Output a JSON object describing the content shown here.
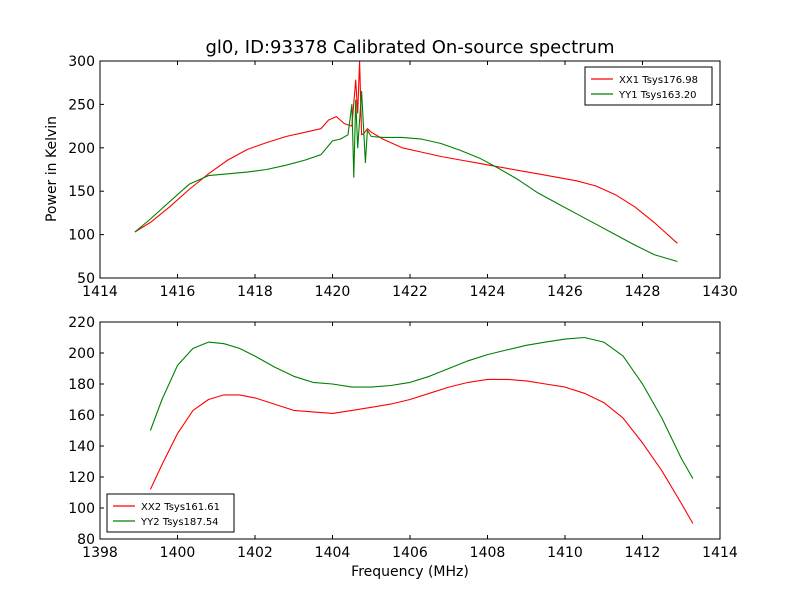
{
  "chart_data": [
    {
      "type": "line",
      "title": "gl0, ID:93378 Calibrated On-source spectrum",
      "xlabel": "",
      "ylabel": "Power in Kelvin",
      "xlim": [
        1414,
        1430
      ],
      "ylim": [
        50,
        300
      ],
      "xticks": [
        1414,
        1416,
        1418,
        1420,
        1422,
        1424,
        1426,
        1428,
        1430
      ],
      "yticks": [
        50,
        100,
        150,
        200,
        250,
        300
      ],
      "grid": false,
      "legend_position": "upper right",
      "series": [
        {
          "name": "XX1 Tsys176.98",
          "color": "#ff0000",
          "x": [
            1414.9,
            1415.3,
            1415.8,
            1416.3,
            1416.8,
            1417.3,
            1417.8,
            1418.3,
            1418.8,
            1419.3,
            1419.7,
            1419.9,
            1420.1,
            1420.3,
            1420.5,
            1420.6,
            1420.65,
            1420.7,
            1420.75,
            1420.8,
            1420.9,
            1421.0,
            1421.3,
            1421.8,
            1422.3,
            1422.8,
            1423.3,
            1423.8,
            1424.3,
            1424.8,
            1425.3,
            1425.8,
            1426.3,
            1426.8,
            1427.3,
            1427.8,
            1428.3,
            1428.9
          ],
          "y": [
            103,
            114,
            132,
            152,
            170,
            186,
            198,
            206,
            213,
            218,
            222,
            232,
            236,
            228,
            225,
            278,
            240,
            300,
            215,
            216,
            222,
            218,
            210,
            200,
            195,
            190,
            186,
            182,
            178,
            174,
            170,
            166,
            162,
            156,
            146,
            132,
            114,
            90
          ]
        },
        {
          "name": "YY1 Tsys163.20",
          "color": "#008000",
          "x": [
            1414.9,
            1415.3,
            1415.8,
            1416.3,
            1416.8,
            1417.3,
            1417.8,
            1418.3,
            1418.8,
            1419.3,
            1419.7,
            1420.0,
            1420.2,
            1420.4,
            1420.5,
            1420.55,
            1420.6,
            1420.65,
            1420.75,
            1420.85,
            1420.9,
            1421.0,
            1421.3,
            1421.8,
            1422.3,
            1422.8,
            1423.3,
            1423.8,
            1424.3,
            1424.8,
            1425.3,
            1425.8,
            1426.3,
            1426.8,
            1427.3,
            1427.8,
            1428.3,
            1428.9
          ],
          "y": [
            103,
            118,
            138,
            158,
            168,
            170,
            172,
            175,
            180,
            186,
            192,
            208,
            210,
            215,
            250,
            166,
            255,
            200,
            265,
            183,
            220,
            213,
            212,
            212,
            210,
            205,
            197,
            188,
            176,
            163,
            148,
            136,
            124,
            112,
            100,
            88,
            77,
            69
          ]
        }
      ]
    },
    {
      "type": "line",
      "title": "",
      "xlabel": "Frequency (MHz)",
      "ylabel": "",
      "xlim": [
        1398,
        1414
      ],
      "ylim": [
        80,
        220
      ],
      "xticks": [
        1398,
        1400,
        1402,
        1404,
        1406,
        1408,
        1410,
        1412,
        1414
      ],
      "yticks": [
        80,
        100,
        120,
        140,
        160,
        180,
        200,
        220
      ],
      "grid": false,
      "legend_position": "lower left",
      "series": [
        {
          "name": "XX2 Tsys161.61",
          "color": "#ff0000",
          "x": [
            1399.3,
            1399.6,
            1400.0,
            1400.4,
            1400.8,
            1401.2,
            1401.6,
            1402.0,
            1402.5,
            1403.0,
            1403.5,
            1404.0,
            1404.5,
            1405.0,
            1405.5,
            1406.0,
            1406.5,
            1407.0,
            1407.5,
            1408.0,
            1408.5,
            1409.0,
            1409.5,
            1410.0,
            1410.5,
            1411.0,
            1411.5,
            1412.0,
            1412.5,
            1413.0,
            1413.3
          ],
          "y": [
            112,
            128,
            148,
            163,
            170,
            173,
            173,
            171,
            167,
            163,
            162,
            161,
            163,
            165,
            167,
            170,
            174,
            178,
            181,
            183,
            183,
            182,
            180,
            178,
            174,
            168,
            158,
            142,
            124,
            103,
            90
          ]
        },
        {
          "name": "YY2 Tsys187.54",
          "color": "#008000",
          "x": [
            1399.3,
            1399.6,
            1400.0,
            1400.4,
            1400.8,
            1401.2,
            1401.6,
            1402.0,
            1402.5,
            1403.0,
            1403.5,
            1404.0,
            1404.5,
            1405.0,
            1405.5,
            1406.0,
            1406.5,
            1407.0,
            1407.5,
            1408.0,
            1408.5,
            1409.0,
            1409.5,
            1410.0,
            1410.5,
            1411.0,
            1411.5,
            1412.0,
            1412.5,
            1413.0,
            1413.3
          ],
          "y": [
            150,
            170,
            192,
            203,
            207,
            206,
            203,
            198,
            191,
            185,
            181,
            180,
            178,
            178,
            179,
            181,
            185,
            190,
            195,
            199,
            202,
            205,
            207,
            209,
            210,
            207,
            198,
            180,
            158,
            132,
            119
          ]
        }
      ]
    }
  ]
}
